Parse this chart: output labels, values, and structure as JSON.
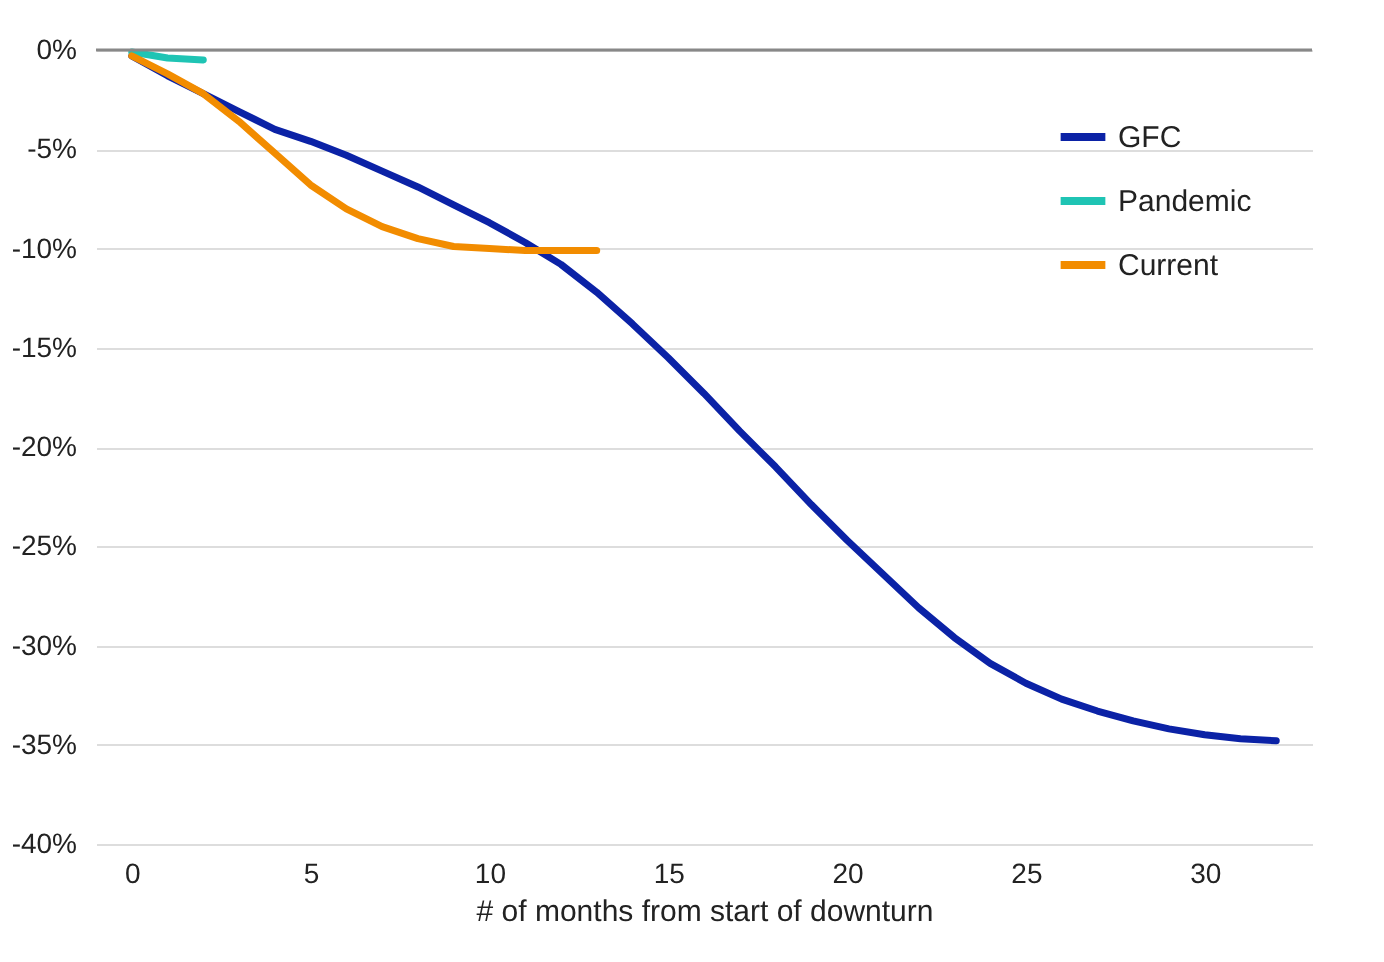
{
  "chart_data": {
    "type": "line",
    "xlabel": "# of months from start of downturn",
    "xlim": [
      -1,
      33
    ],
    "xticks": [
      0,
      5,
      10,
      15,
      20,
      25,
      30
    ],
    "ylim": [
      -40,
      0
    ],
    "yticks": [
      {
        "value": 0,
        "label": "0%"
      },
      {
        "value": -5,
        "label": "-5%"
      },
      {
        "value": -10,
        "label": "-10%"
      },
      {
        "value": -15,
        "label": "-15%"
      },
      {
        "value": -20,
        "label": "-20%"
      },
      {
        "value": -25,
        "label": "-25%"
      },
      {
        "value": -30,
        "label": "-30%"
      },
      {
        "value": -35,
        "label": "-35%"
      },
      {
        "value": -40,
        "label": "-40%"
      }
    ],
    "grid": "y",
    "legend": "top right",
    "marker": "none",
    "line_style": "solid",
    "ref_lines": [
      {
        "axis": "y",
        "value": 0,
        "color": "#888888"
      }
    ],
    "series": [
      {
        "name": "GFC",
        "color": "#0b22a6",
        "x": [
          0,
          1,
          2,
          3,
          4,
          5,
          6,
          7,
          8,
          9,
          10,
          11,
          12,
          13,
          14,
          15,
          16,
          17,
          18,
          19,
          20,
          21,
          22,
          23,
          24,
          25,
          26,
          27,
          28,
          29,
          30,
          31,
          32
        ],
        "values": [
          -0.3,
          -1.3,
          -2.2,
          -3.1,
          -4.0,
          -4.6,
          -5.3,
          -6.1,
          -6.9,
          -7.8,
          -8.7,
          -9.7,
          -10.8,
          -12.2,
          -13.8,
          -15.5,
          -17.3,
          -19.2,
          -21.0,
          -22.9,
          -24.7,
          -26.4,
          -28.1,
          -29.6,
          -30.9,
          -31.9,
          -32.7,
          -33.3,
          -33.8,
          -34.2,
          -34.5,
          -34.7,
          -34.8
        ]
      },
      {
        "name": "Pandemic",
        "color": "#1fc4b4",
        "x": [
          0,
          1,
          2
        ],
        "values": [
          -0.1,
          -0.4,
          -0.5
        ]
      },
      {
        "name": "Current",
        "color": "#f28c00",
        "x": [
          0,
          1,
          2,
          3,
          4,
          5,
          6,
          7,
          8,
          9,
          10,
          11,
          12,
          13
        ],
        "values": [
          -0.3,
          -1.2,
          -2.2,
          -3.6,
          -5.2,
          -6.8,
          -8.0,
          -8.9,
          -9.5,
          -9.9,
          -10.0,
          -10.1,
          -10.1,
          -10.1
        ]
      }
    ]
  }
}
